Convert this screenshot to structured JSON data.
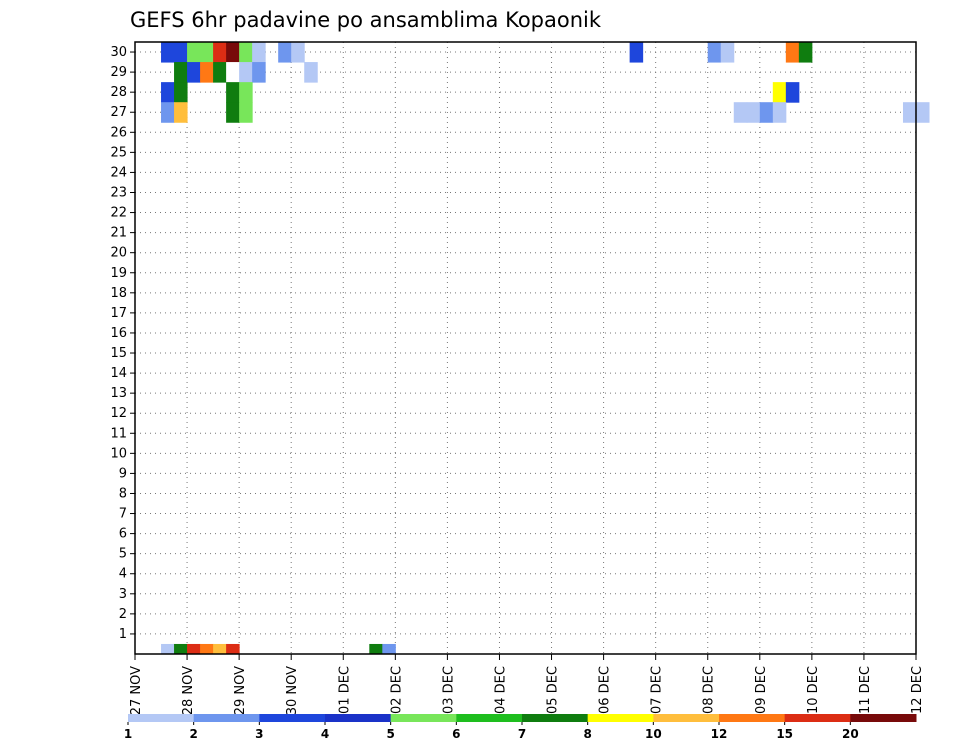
{
  "chart_data": {
    "type": "heatmap",
    "title": "GEFS 6hr padavine po ansamblima Kopaonik",
    "y_categories": [
      "1",
      "2",
      "3",
      "4",
      "5",
      "6",
      "7",
      "8",
      "9",
      "10",
      "11",
      "12",
      "13",
      "14",
      "15",
      "16",
      "17",
      "18",
      "19",
      "20",
      "21",
      "22",
      "23",
      "24",
      "25",
      "26",
      "27",
      "28",
      "29",
      "30"
    ],
    "x_ticks": [
      "27 NOV",
      "28 NOV",
      "29 NOV",
      "30 NOV",
      "01 DEC",
      "02 DEC",
      "03 DEC",
      "04 DEC",
      "05 DEC",
      "06 DEC",
      "07 DEC",
      "08 DEC",
      "09 DEC",
      "10 DEC",
      "11 DEC",
      "12 DEC"
    ],
    "x_range_days": [
      0,
      15
    ],
    "time_step_hours": 6,
    "colorbar": {
      "labels": [
        "1",
        "2",
        "3",
        "4",
        "5",
        "6",
        "7",
        "8",
        "10",
        "12",
        "15",
        "20"
      ],
      "colors": [
        "#b4c8f5",
        "#6e96ee",
        "#1e46dc",
        "#1a32c8",
        "#78e65a",
        "#1ebe1e",
        "#0f7d0f",
        "#ffff00",
        "#ffbe3c",
        "#ff7814",
        "#dc2d14",
        "#780a0a"
      ]
    },
    "bottom_row_steps": [
      {
        "t": 8.5,
        "color": "#b4c8f5"
      },
      {
        "t": 8.75,
        "color": "#0f7d0f"
      },
      {
        "t": 9.0,
        "color": "#dc2d14"
      },
      {
        "t": 9.25,
        "color": "#ff7814"
      },
      {
        "t": 9.5,
        "color": "#ffbe3c"
      },
      {
        "t": 9.75,
        "color": "#dc2d14"
      },
      {
        "t": 12.5,
        "color": "#0f7d0f"
      },
      {
        "t": 12.75,
        "color": "#6e96ee"
      }
    ],
    "cells": [
      {
        "m": 30,
        "t": 8.5,
        "color": "#1e46dc"
      },
      {
        "m": 30,
        "t": 8.75,
        "color": "#1e46dc"
      },
      {
        "m": 30,
        "t": 9.0,
        "color": "#78e65a"
      },
      {
        "m": 30,
        "t": 9.25,
        "color": "#78e65a"
      },
      {
        "m": 30,
        "t": 9.5,
        "color": "#dc2d14"
      },
      {
        "m": 30,
        "t": 9.75,
        "color": "#780a0a"
      },
      {
        "m": 30,
        "t": 10.0,
        "color": "#78e65a"
      },
      {
        "m": 30,
        "t": 10.25,
        "color": "#b4c8f5"
      },
      {
        "m": 30,
        "t": 10.75,
        "color": "#6e96ee"
      },
      {
        "m": 30,
        "t": 11.0,
        "color": "#b4c8f5"
      },
      {
        "m": 30,
        "t": 17.5,
        "color": "#1e46dc"
      },
      {
        "m": 30,
        "t": 19.0,
        "color": "#6e96ee"
      },
      {
        "m": 30,
        "t": 19.25,
        "color": "#b4c8f5"
      },
      {
        "m": 30,
        "t": 20.5,
        "color": "#ff7814"
      },
      {
        "m": 30,
        "t": 20.75,
        "color": "#0f7d0f"
      },
      {
        "m": 29,
        "t": 8.75,
        "color": "#0f7d0f"
      },
      {
        "m": 29,
        "t": 9.0,
        "color": "#1e46dc"
      },
      {
        "m": 29,
        "t": 9.25,
        "color": "#ff7814"
      },
      {
        "m": 29,
        "t": 9.5,
        "color": "#0f7d0f"
      },
      {
        "m": 29,
        "t": 9.75,
        "color": "#ffffff"
      },
      {
        "m": 29,
        "t": 10.0,
        "color": "#b4c8f5"
      },
      {
        "m": 29,
        "t": 10.25,
        "color": "#6e96ee"
      },
      {
        "m": 29,
        "t": 11.25,
        "color": "#b4c8f5"
      },
      {
        "m": 28,
        "t": 8.5,
        "color": "#1e46dc"
      },
      {
        "m": 28,
        "t": 8.75,
        "color": "#0f7d0f"
      },
      {
        "m": 28,
        "t": 9.75,
        "color": "#0f7d0f"
      },
      {
        "m": 28,
        "t": 10.0,
        "color": "#78e65a"
      },
      {
        "m": 28,
        "t": 20.25,
        "color": "#ffff00"
      },
      {
        "m": 28,
        "t": 20.5,
        "color": "#1e46dc"
      },
      {
        "m": 27,
        "t": 8.5,
        "color": "#6e96ee"
      },
      {
        "m": 27,
        "t": 8.75,
        "color": "#ffbe3c"
      },
      {
        "m": 27,
        "t": 9.75,
        "color": "#0f7d0f"
      },
      {
        "m": 27,
        "t": 10.0,
        "color": "#78e65a"
      },
      {
        "m": 27,
        "t": 19.5,
        "color": "#b4c8f5"
      },
      {
        "m": 27,
        "t": 19.75,
        "color": "#b4c8f5"
      },
      {
        "m": 27,
        "t": 20.0,
        "color": "#6e96ee"
      },
      {
        "m": 27,
        "t": 20.25,
        "color": "#b4c8f5"
      },
      {
        "m": 27,
        "t": 22.75,
        "color": "#b4c8f5"
      },
      {
        "m": 27,
        "t": 23.0,
        "color": "#b4c8f5"
      }
    ]
  }
}
